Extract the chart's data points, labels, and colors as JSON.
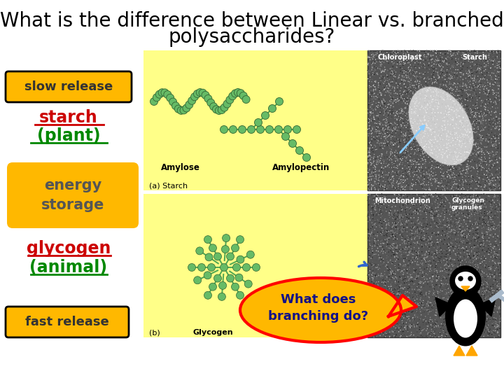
{
  "title_line1": "What is the difference between Linear vs. branched",
  "title_line2": "polysaccharides?",
  "title_fontsize": 20,
  "title_color": "#000000",
  "bg_color": "#ffffff",
  "label_slow_release": "slow release",
  "label_starch_1": "starch",
  "label_starch_2": "(plant)",
  "label_energy": "energy\nstorage",
  "label_glycogen_1": "glycogen",
  "label_glycogen_2": "(animal)",
  "label_fast_release": "fast release",
  "label_branching": "What does\nbranching do?",
  "box_color_orange": "#FFB800",
  "starch_color_red": "#cc0000",
  "starch_color_green": "#008800",
  "yellow_bg": "#FFFF88",
  "node_color": "#66bb66",
  "node_edge": "#336633",
  "node_line_color": "#55aa55"
}
